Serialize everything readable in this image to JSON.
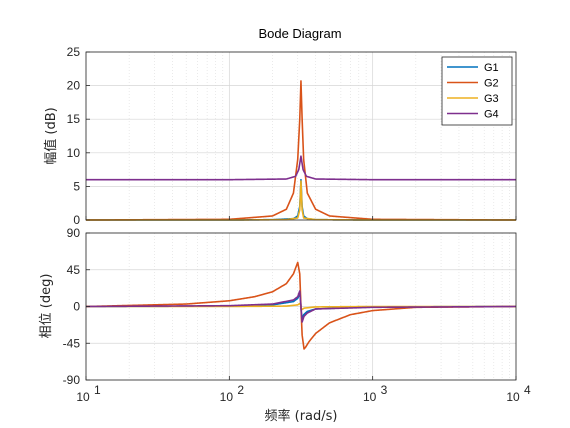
{
  "chart_data": {
    "type": "line",
    "title": "Bode Diagram",
    "xlabel": "频率  (rad/s)",
    "xscale": "log",
    "xlim": [
      10,
      10000
    ],
    "x_ticks": [
      {
        "value": 10,
        "base": "10",
        "exp": "1"
      },
      {
        "value": 100,
        "base": "10",
        "exp": "2"
      },
      {
        "value": 1000,
        "base": "10",
        "exp": "3"
      },
      {
        "value": 10000,
        "base": "10",
        "exp": "4"
      }
    ],
    "grid": true,
    "legend_position": "top-right",
    "resonance_frequency": 316,
    "panels": [
      {
        "name": "magnitude",
        "ylabel": "幅值 (dB)",
        "ylim": [
          0,
          25
        ],
        "y_ticks": [
          0,
          5,
          10,
          15,
          20,
          25
        ],
        "series": [
          {
            "name": "G1",
            "color": "#0072BD",
            "baseline": 0,
            "peak": 6.0,
            "x": [
              10,
              100,
              200,
              280,
              300,
              310,
              316,
              322,
              330,
              350,
              400,
              1000,
              10000
            ],
            "y": [
              0,
              0,
              0.05,
              0.2,
              0.6,
              2.0,
              6.0,
              2.0,
              0.6,
              0.2,
              0.05,
              0,
              0
            ]
          },
          {
            "name": "G2",
            "color": "#D95319",
            "baseline": 0,
            "peak": 20.7,
            "x": [
              10,
              100,
              200,
              250,
              280,
              300,
              310,
              316,
              322,
              330,
              350,
              400,
              500,
              1000,
              10000
            ],
            "y": [
              0,
              0.1,
              0.6,
              1.6,
              4.0,
              9.0,
              15.0,
              20.7,
              15.0,
              9.0,
              4.0,
              1.6,
              0.6,
              0.1,
              0
            ]
          },
          {
            "name": "G3",
            "color": "#EDB120",
            "baseline": 0,
            "peak": 5.8,
            "x": [
              10,
              100,
              250,
              300,
              310,
              316,
              322,
              330,
              400,
              1000,
              10000
            ],
            "y": [
              0,
              0,
              0.05,
              0.3,
              1.5,
              5.8,
              1.5,
              0.3,
              0.05,
              0,
              0
            ]
          },
          {
            "name": "G4",
            "color": "#7E2F8E",
            "baseline": 6,
            "peak": 9.5,
            "x": [
              10,
              100,
              250,
              290,
              305,
              316,
              327,
              345,
              400,
              1000,
              10000
            ],
            "y": [
              6,
              6,
              6.1,
              6.5,
              7.5,
              9.5,
              7.5,
              6.5,
              6.1,
              6,
              6
            ]
          }
        ]
      },
      {
        "name": "phase",
        "ylabel": "相位 (deg)",
        "ylim": [
          -90,
          90
        ],
        "y_ticks": [
          -90,
          -45,
          0,
          45,
          90
        ],
        "series": [
          {
            "name": "G1",
            "color": "#0072BD",
            "x": [
              10,
              100,
              200,
              280,
              300,
              312,
              316,
              320,
              330,
              350,
              400,
              1000,
              10000
            ],
            "y": [
              0,
              0.5,
              2,
              6,
              10,
              16,
              0,
              -16,
              -10,
              -6,
              -3,
              -0.5,
              0
            ]
          },
          {
            "name": "G2",
            "color": "#D95319",
            "x": [
              10,
              50,
              100,
              150,
              200,
              250,
              280,
              300,
              310,
              316,
              322,
              332,
              340,
              360,
              400,
              500,
              700,
              1000,
              2000,
              10000
            ],
            "y": [
              0,
              3,
              7,
              12,
              18,
              28,
              40,
              54,
              40,
              0,
              -35,
              -52,
              -50,
              -43,
              -33,
              -20,
              -10,
              -5,
              -1,
              0
            ]
          },
          {
            "name": "G3",
            "color": "#EDB120",
            "x": [
              10,
              100,
              250,
              300,
              312,
              316,
              320,
              332,
              400,
              1000,
              10000
            ],
            "y": [
              0,
              0,
              0.5,
              2,
              4,
              0,
              -4,
              -2,
              -0.5,
              0,
              0
            ]
          },
          {
            "name": "G4",
            "color": "#7E2F8E",
            "x": [
              10,
              100,
              200,
              280,
              300,
              310,
              316,
              322,
              332,
              350,
              400,
              1000,
              10000
            ],
            "y": [
              0,
              1,
              3,
              8,
              12,
              19,
              0,
              -19,
              -12,
              -8,
              -3,
              -1,
              0
            ]
          }
        ]
      }
    ]
  }
}
